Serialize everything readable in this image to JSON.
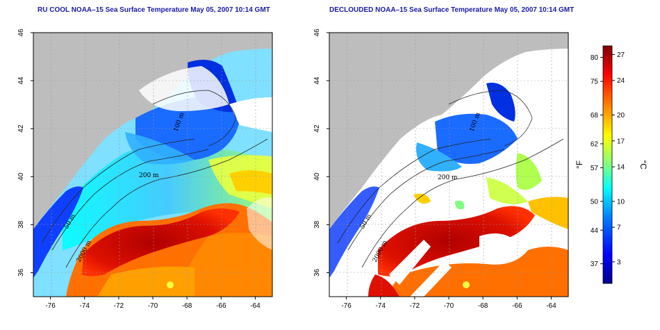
{
  "panels": [
    {
      "id": "left",
      "title": "RU COOL NOAA–15 Sea Surface Temperature May 05, 2007 10:14 GMT",
      "variant": "full"
    },
    {
      "id": "right",
      "title": "DECLOUDED NOAA–15 Sea Surface Temperature May 05, 2007 10:14 GMT",
      "variant": "declouded"
    }
  ],
  "map": {
    "lon_range": [
      -77,
      -63
    ],
    "lat_range": [
      35,
      46
    ],
    "lon_ticks": [
      "-76",
      "-74",
      "-72",
      "-70",
      "-68",
      "-66",
      "-64"
    ],
    "lat_ticks": [
      "36",
      "38",
      "40",
      "42",
      "44",
      "46"
    ],
    "depth_labels": [
      "50 m",
      "100 m",
      "200 m",
      "2000 m"
    ],
    "colors": {
      "land": "#bdbdbd",
      "cloud": "#ffffff",
      "contour": "#222222"
    }
  },
  "colorbar": {
    "fahrenheit_label": "°F",
    "celsius_label": "°C",
    "fahrenheit_ticks": [
      "37",
      "44",
      "50",
      "57",
      "62",
      "68",
      "75",
      "80"
    ],
    "celsius_ticks": [
      "3",
      "7",
      "10",
      "14",
      "17",
      "20",
      "24",
      "27"
    ],
    "range_c": [
      0.5,
      28
    ]
  }
}
